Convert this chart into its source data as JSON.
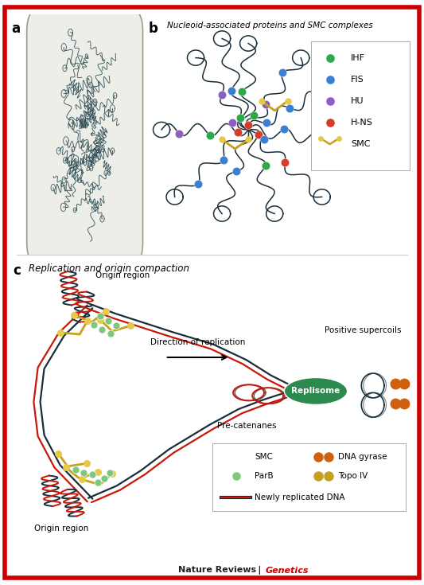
{
  "panel_a_label": "a",
  "panel_b_label": "b",
  "panel_b_title": "Nucleoid-associated proteins and SMC complexes",
  "panel_c_label": "c",
  "panel_c_title": "Replication and origin compaction",
  "ihf_color": "#2da84a",
  "fis_color": "#3a7fd4",
  "hu_color": "#8b5fbe",
  "hns_color": "#d63c2a",
  "smc_color": "#c8a020",
  "smc_dot_color": "#e8c84a",
  "parb_color": "#7ec87a",
  "dna_gyrase_color": "#d06010",
  "topo_iv_color": "#c8a020",
  "dna1_color": "#1a2e3a",
  "dna2_color": "#c8180a",
  "replisome_color": "#2d8a4e",
  "background": "#ffffff",
  "border_color": "#cc0000",
  "cell_fill": "#edeee8",
  "cell_border": "#9a9a8a",
  "nucleoid_color": "#2d4a52",
  "footer_main": "#222222",
  "footer_accent": "#cc0000",
  "direction_text": "Direction of replication",
  "positive_supercoils_text": "Positive supercoils",
  "pre_catenanes_text": "Pre-catenanes",
  "origin_region_text": "Origin region"
}
